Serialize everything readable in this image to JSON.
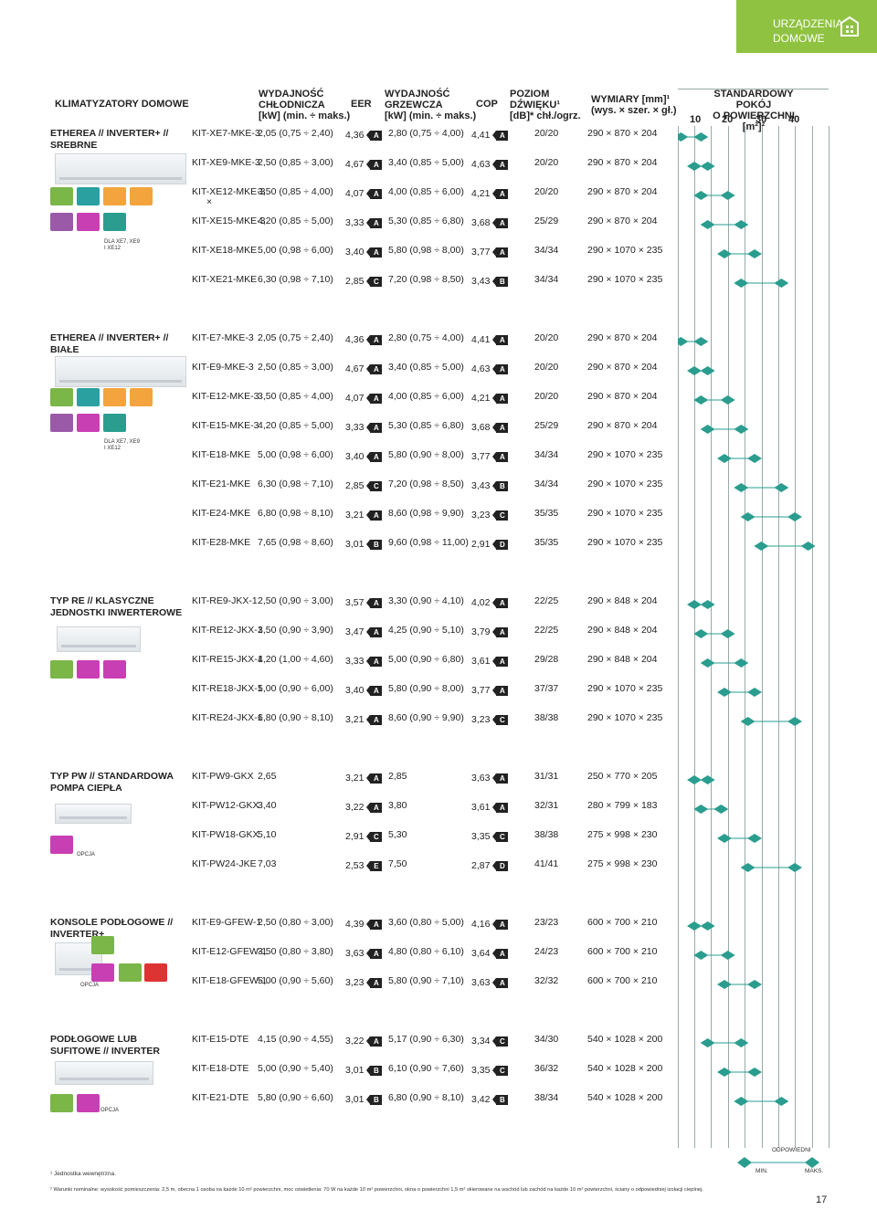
{
  "corner": {
    "line1": "URZĄDZENIA",
    "line2": "DOMOWE"
  },
  "header": {
    "main": "KLIMATYZATORY DOMOWE",
    "cool_1": "WYDAJNOŚĆ",
    "cool_2": "CHŁODNICZA",
    "cool_3": "[kW] (min. ÷ maks.)",
    "eer": "EER",
    "heat_1": "WYDAJNOŚĆ",
    "heat_2": "GRZEWCZA",
    "heat_3": "[kW] (min. ÷ maks.)",
    "cop": "COP",
    "noise_1": "POZIOM",
    "noise_2": "DŹWIĘKU¹",
    "noise_3": "[dB]* chł./ogrz.",
    "dim_1": "WYMIARY [mm]¹",
    "dim_2": "(wys. × szer. × gł.)",
    "room_1": "STANDARDOWY POKÓJ",
    "room_2": "O POWIERZCHNI [m²]²",
    "room_ticks": [
      "10",
      "20",
      "30",
      "40"
    ]
  },
  "sections": [
    {
      "title": "ETHEREA // INVERTER+ // SREBRNE",
      "note": "DLA XE7, XE9 I XE12",
      "rows": [
        {
          "model": "KIT-XE7-MKE-3",
          "cool": "2,05 (0,75 ÷ 2,40)",
          "eer": "4,36",
          "eer_cls": "A",
          "heat": "2,80 (0,75 ÷ 4,00)",
          "cop": "4,41",
          "cop_cls": "A",
          "noise": "20/20",
          "dim": "290 × 870 × 204",
          "room": [
            6,
            12
          ]
        },
        {
          "model": "KIT-XE9-MKE-3",
          "cool": "2,50 (0,85 ÷ 3,00)",
          "eer": "4,67",
          "eer_cls": "A",
          "heat": "3,40 (0,85 ÷ 5,00)",
          "cop": "4,63",
          "cop_cls": "A",
          "noise": "20/20",
          "dim": "290 × 870 × 204",
          "room": [
            10,
            14
          ]
        },
        {
          "model": "KIT-XE12-MKE-3",
          "cool": "3,50 (0,85 ÷ 4,00)",
          "eer": "4,07",
          "eer_cls": "A",
          "heat": "4,00 (0,85 ÷ 6,00)",
          "cop": "4,21",
          "cop_cls": "A",
          "noise": "20/20",
          "dim": "290 × 870 × 204",
          "room": [
            12,
            20
          ],
          "sub": "×"
        },
        {
          "model": "KIT-XE15-MKE-3",
          "cool": "4,20 (0,85 ÷ 5,00)",
          "eer": "3,33",
          "eer_cls": "A",
          "heat": "5,30 (0,85 ÷ 6,80)",
          "cop": "3,68",
          "cop_cls": "A",
          "noise": "25/29",
          "dim": "290 × 870 × 204",
          "room": [
            14,
            24
          ]
        },
        {
          "model": "KIT-XE18-MKE",
          "cool": "5,00 (0,98 ÷ 6,00)",
          "eer": "3,40",
          "eer_cls": "A",
          "heat": "5,80 (0,98 ÷ 8,00)",
          "cop": "3,77",
          "cop_cls": "A",
          "noise": "34/34",
          "dim": "290 × 1070 × 235",
          "room": [
            19,
            28
          ]
        },
        {
          "model": "KIT-XE21-MKE",
          "cool": "6,30 (0,98 ÷ 7,10)",
          "eer": "2,85",
          "eer_cls": "C",
          "heat": "7,20 (0,98 ÷ 8,50)",
          "cop": "3,43",
          "cop_cls": "B",
          "noise": "34/34",
          "dim": "290 × 1070 × 235",
          "room": [
            24,
            36
          ]
        }
      ]
    },
    {
      "title": "ETHEREA // INVERTER+ // BIAŁE",
      "note": "DLA XE7, XE9 I XE12",
      "rows": [
        {
          "model": "KIT-E7-MKE-3",
          "cool": "2,05 (0,75 ÷ 2,40)",
          "eer": "4,36",
          "eer_cls": "A",
          "heat": "2,80 (0,75 ÷ 4,00)",
          "cop": "4,41",
          "cop_cls": "A",
          "noise": "20/20",
          "dim": "290 × 870 × 204",
          "room": [
            6,
            12
          ]
        },
        {
          "model": "KIT-E9-MKE-3",
          "cool": "2,50 (0,85 ÷ 3,00)",
          "eer": "4,67",
          "eer_cls": "A",
          "heat": "3,40 (0,85 ÷ 5,00)",
          "cop": "4,63",
          "cop_cls": "A",
          "noise": "20/20",
          "dim": "290 × 870 × 204",
          "room": [
            10,
            14
          ]
        },
        {
          "model": "KIT-E12-MKE-3",
          "cool": "3,50 (0,85 ÷ 4,00)",
          "eer": "4,07",
          "eer_cls": "A",
          "heat": "4,00 (0,85 ÷ 6,00)",
          "cop": "4,21",
          "cop_cls": "A",
          "noise": "20/20",
          "dim": "290 × 870 × 204",
          "room": [
            12,
            20
          ]
        },
        {
          "model": "KIT-E15-MKE-3",
          "cool": "4,20 (0,85 ÷ 5,00)",
          "eer": "3,33",
          "eer_cls": "A",
          "heat": "5,30 (0,85 ÷ 6,80)",
          "cop": "3,68",
          "cop_cls": "A",
          "noise": "25/29",
          "dim": "290 × 870 × 204",
          "room": [
            14,
            24
          ]
        },
        {
          "model": "KIT-E18-MKE",
          "cool": "5,00 (0,98 ÷ 6,00)",
          "eer": "3,40",
          "eer_cls": "A",
          "heat": "5,80 (0,90 ÷ 8,00)",
          "cop": "3,77",
          "cop_cls": "A",
          "noise": "34/34",
          "dim": "290 × 1070 × 235",
          "room": [
            19,
            28
          ]
        },
        {
          "model": "KIT-E21-MKE",
          "cool": "6,30 (0,98 ÷ 7,10)",
          "eer": "2,85",
          "eer_cls": "C",
          "heat": "7,20 (0,98 ÷ 8,50)",
          "cop": "3,43",
          "cop_cls": "B",
          "noise": "34/34",
          "dim": "290 × 1070 × 235",
          "room": [
            24,
            36
          ]
        },
        {
          "model": "KIT-E24-MKE",
          "cool": "6,80 (0,98 ÷ 8,10)",
          "eer": "3,21",
          "eer_cls": "A",
          "heat": "8,60 (0,98 ÷ 9,90)",
          "cop": "3,23",
          "cop_cls": "C",
          "noise": "35/35",
          "dim": "290 × 1070 × 235",
          "room": [
            26,
            40
          ]
        },
        {
          "model": "KIT-E28-MKE",
          "cool": "7,65 (0,98 ÷ 8,60)",
          "eer": "3,01",
          "eer_cls": "B",
          "heat": "9,60 (0,98 ÷ 11,00)",
          "cop": "2,91",
          "cop_cls": "D",
          "noise": "35/35",
          "dim": "290 × 1070 × 235",
          "room": [
            30,
            44
          ]
        }
      ]
    },
    {
      "title": "TYP RE // KLASYCZNE JEDNOSTKI INWERTEROWE",
      "rows": [
        {
          "model": "KIT-RE9-JKX-1",
          "cool": "2,50 (0,90 ÷ 3,00)",
          "eer": "3,57",
          "eer_cls": "A",
          "heat": "3,30 (0,90 ÷ 4,10)",
          "cop": "4,02",
          "cop_cls": "A",
          "noise": "22/25",
          "dim": "290 × 848 × 204",
          "room": [
            10,
            14
          ]
        },
        {
          "model": "KIT-RE12-JKX-1",
          "cool": "3,50 (0,90 ÷ 3,90)",
          "eer": "3,47",
          "eer_cls": "A",
          "heat": "4,25 (0,90 ÷ 5,10)",
          "cop": "3,79",
          "cop_cls": "A",
          "noise": "22/25",
          "dim": "290 × 848 × 204",
          "room": [
            12,
            20
          ]
        },
        {
          "model": "KIT-RE15-JKX-1",
          "cool": "4,20 (1,00 ÷ 4,60)",
          "eer": "3,33",
          "eer_cls": "A",
          "heat": "5,00 (0,90 ÷ 6,80)",
          "cop": "3,61",
          "cop_cls": "A",
          "noise": "29/28",
          "dim": "290 × 848 × 204",
          "room": [
            14,
            24
          ]
        },
        {
          "model": "KIT-RE18-JKX-1",
          "cool": "5,00 (0,90 ÷ 6,00)",
          "eer": "3,40",
          "eer_cls": "A",
          "heat": "5,80 (0,90 ÷ 8,00)",
          "cop": "3,77",
          "cop_cls": "A",
          "noise": "37/37",
          "dim": "290 × 1070 × 235",
          "room": [
            19,
            28
          ]
        },
        {
          "model": "KIT-RE24-JKX-1",
          "cool": "6,80 (0,90 ÷ 8,10)",
          "eer": "3,21",
          "eer_cls": "A",
          "heat": "8,60 (0,90 ÷ 9,90)",
          "cop": "3,23",
          "cop_cls": "C",
          "noise": "38/38",
          "dim": "290 × 1070 × 235",
          "room": [
            26,
            40
          ]
        }
      ]
    },
    {
      "title": "TYP PW // STANDARDOWA POMPA CIEPŁA",
      "note": "OPCJA",
      "rows": [
        {
          "model": "KIT-PW9-GKX",
          "cool": "2,65",
          "eer": "3,21",
          "eer_cls": "A",
          "heat": "2,85",
          "cop": "3,63",
          "cop_cls": "A",
          "noise": "31/31",
          "dim": "250 × 770 × 205",
          "room": [
            10,
            14
          ]
        },
        {
          "model": "KIT-PW12-GKX",
          "cool": "3,40",
          "eer": "3,22",
          "eer_cls": "A",
          "heat": "3,80",
          "cop": "3,61",
          "cop_cls": "A",
          "noise": "32/31",
          "dim": "280 × 799 × 183",
          "room": [
            12,
            18
          ]
        },
        {
          "model": "KIT-PW18-GKX",
          "cool": "5,10",
          "eer": "2,91",
          "eer_cls": "C",
          "heat": "5,30",
          "cop": "3,35",
          "cop_cls": "C",
          "noise": "38/38",
          "dim": "275 × 998 × 230",
          "room": [
            19,
            28
          ]
        },
        {
          "model": "KIT-PW24-JKE",
          "cool": "7,03",
          "eer": "2,53",
          "eer_cls": "E",
          "heat": "7,50",
          "cop": "2,87",
          "cop_cls": "D",
          "noise": "41/41",
          "dim": "275 × 998 × 230",
          "room": [
            26,
            40
          ]
        }
      ]
    },
    {
      "title": "KONSOLE PODŁOGOWE // INVERTER+",
      "note": "OPCJA",
      "rows": [
        {
          "model": "KIT-E9-GFEW-1",
          "cool": "2,50 (0,80 ÷ 3,00)",
          "eer": "4,39",
          "eer_cls": "A",
          "heat": "3,60 (0,80 ÷ 5,00)",
          "cop": "4,16",
          "cop_cls": "A",
          "noise": "23/23",
          "dim": "600 × 700 × 210",
          "room": [
            10,
            14
          ]
        },
        {
          "model": "KIT-E12-GFEW-1",
          "cool": "3,50 (0,80 ÷ 3,80)",
          "eer": "3,63",
          "eer_cls": "A",
          "heat": "4,80 (0,80 ÷ 6,10)",
          "cop": "3,64",
          "cop_cls": "A",
          "noise": "24/23",
          "dim": "600 × 700 × 210",
          "room": [
            12,
            20
          ]
        },
        {
          "model": "KIT-E18-GFEW-1",
          "cool": "5,00 (0,90 ÷ 5,60)",
          "eer": "3,23",
          "eer_cls": "A",
          "heat": "5,80 (0,90 ÷ 7,10)",
          "cop": "3,63",
          "cop_cls": "A",
          "noise": "32/32",
          "dim": "600 × 700 × 210",
          "room": [
            19,
            28
          ]
        }
      ]
    },
    {
      "title": "PODŁOGOWE LUB SUFITOWE // INVERTER",
      "note": "OPCJA",
      "rows": [
        {
          "model": "KIT-E15-DTE",
          "cool": "4,15 (0,90 ÷ 4,55)",
          "eer": "3,22",
          "eer_cls": "A",
          "heat": "5,17 (0,90 ÷ 6,30)",
          "cop": "3,34",
          "cop_cls": "C",
          "noise": "34/30",
          "dim": "540 × 1028 × 200",
          "room": [
            14,
            24
          ]
        },
        {
          "model": "KIT-E18-DTE",
          "cool": "5,00 (0,90 ÷ 5,40)",
          "eer": "3,01",
          "eer_cls": "B",
          "heat": "6,10 (0,90 ÷ 7,60)",
          "cop": "3,35",
          "cop_cls": "C",
          "noise": "36/32",
          "dim": "540 × 1028 × 200",
          "room": [
            19,
            28
          ]
        },
        {
          "model": "KIT-E21-DTE",
          "cool": "5,80 (0,90 ÷ 6,60)",
          "eer": "3,01",
          "eer_cls": "B",
          "heat": "6,80 (0,90 ÷ 8,10)",
          "cop": "3,42",
          "cop_cls": "B",
          "noise": "38/34",
          "dim": "540 × 1028 × 200",
          "room": [
            24,
            36
          ]
        }
      ]
    }
  ],
  "legend": {
    "title": "ODPOWIEDNI",
    "min": "MIN.",
    "max": "MAKS."
  },
  "footnotes": {
    "f1": "¹ Jednostka wewnętrzna.",
    "f2": "² Warunki nominalne: wysokość pomieszczenia: 2,5 m, obecna 1 osoba na każde 10 m² powierzchni, moc oświetlenia: 70 W na każde 10 m² powierzchni, okna o powierzchni 1,5 m² skierowane na wschód lub zachód na każde 10 m² powierzchni, ściany o odpowiedniej izolacji cieplnej."
  },
  "page_number": "17",
  "colors": {
    "green": "#8fc241",
    "teal": "#2a9d8f",
    "dark": "#222222"
  }
}
